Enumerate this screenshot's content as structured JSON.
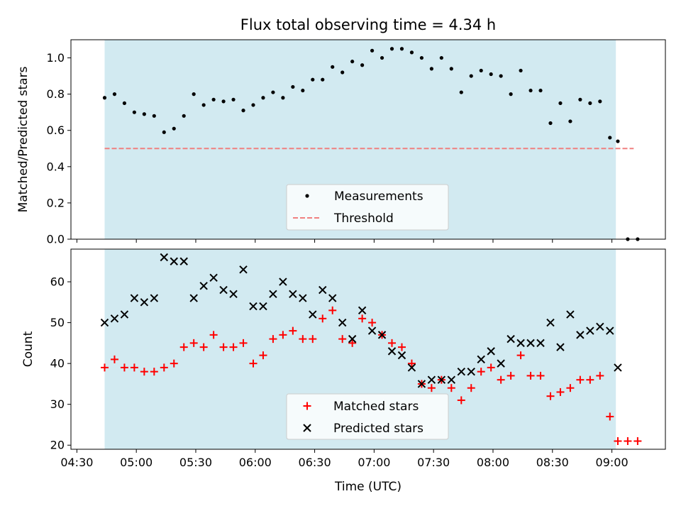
{
  "chart_data": [
    {
      "type": "scatter",
      "title": "Flux total observing time = 4.34 h",
      "ylabel": "Matched/Predicted stars",
      "xlabel": "",
      "xlim": [
        "04:27",
        "09:27"
      ],
      "ylim": [
        0,
        1.1
      ],
      "yticks": [
        "0.0",
        "0.2",
        "0.4",
        "0.6",
        "0.8",
        "1.0"
      ],
      "shaded_span": [
        "04:44",
        "09:02"
      ],
      "legend": [
        "Measurements",
        "Threshold"
      ],
      "legend_position": "bottom-center",
      "threshold": {
        "y": 0.5,
        "x": [
          "04:44",
          "09:11"
        ]
      },
      "series": [
        {
          "name": "Measurements",
          "x": [
            "04:44",
            "04:49",
            "04:54",
            "04:59",
            "05:04",
            "05:09",
            "05:14",
            "05:19",
            "05:24",
            "05:29",
            "05:34",
            "05:39",
            "05:44",
            "05:49",
            "05:54",
            "05:59",
            "06:04",
            "06:09",
            "06:14",
            "06:19",
            "06:24",
            "06:29",
            "06:34",
            "06:39",
            "06:44",
            "06:49",
            "06:54",
            "06:59",
            "07:04",
            "07:09",
            "07:14",
            "07:19",
            "07:24",
            "07:29",
            "07:34",
            "07:39",
            "07:44",
            "07:49",
            "07:54",
            "07:59",
            "08:04",
            "08:09",
            "08:14",
            "08:19",
            "08:24",
            "08:29",
            "08:34",
            "08:39",
            "08:44",
            "08:49",
            "08:54",
            "08:59",
            "09:03",
            "09:08",
            "09:13"
          ],
          "values": [
            0.78,
            0.8,
            0.75,
            0.7,
            0.69,
            0.68,
            0.59,
            0.61,
            0.68,
            0.8,
            0.74,
            0.77,
            0.76,
            0.77,
            0.71,
            0.74,
            0.78,
            0.81,
            0.78,
            0.84,
            0.82,
            0.88,
            0.88,
            0.95,
            0.92,
            0.98,
            0.96,
            1.04,
            1.0,
            1.05,
            1.05,
            1.03,
            1.0,
            0.94,
            1.0,
            0.94,
            0.81,
            0.9,
            0.93,
            0.91,
            0.9,
            0.8,
            0.93,
            0.82,
            0.82,
            0.64,
            0.75,
            0.65,
            0.77,
            0.75,
            0.76,
            0.56,
            0.54,
            0.0,
            0.0
          ]
        }
      ]
    },
    {
      "type": "scatter",
      "title": "",
      "ylabel": "Count",
      "xlabel": "Time (UTC)",
      "xlim": [
        "04:27",
        "09:27"
      ],
      "ylim": [
        19,
        68
      ],
      "yticks": [
        "20",
        "30",
        "40",
        "50",
        "60"
      ],
      "xticks": [
        "04:30",
        "05:00",
        "05:30",
        "06:00",
        "06:30",
        "07:00",
        "07:30",
        "08:00",
        "08:30",
        "09:00"
      ],
      "shaded_span": [
        "04:44",
        "09:02"
      ],
      "legend": [
        "Matched stars",
        "Predicted stars"
      ],
      "legend_position": "bottom-center",
      "series": [
        {
          "name": "Matched stars",
          "color": "#ff0000",
          "x": [
            "04:44",
            "04:49",
            "04:54",
            "04:59",
            "05:04",
            "05:09",
            "05:14",
            "05:19",
            "05:24",
            "05:29",
            "05:34",
            "05:39",
            "05:44",
            "05:49",
            "05:54",
            "05:59",
            "06:04",
            "06:09",
            "06:14",
            "06:19",
            "06:24",
            "06:29",
            "06:34",
            "06:39",
            "06:44",
            "06:49",
            "06:54",
            "06:59",
            "07:04",
            "07:09",
            "07:14",
            "07:19",
            "07:24",
            "07:29",
            "07:34",
            "07:39",
            "07:44",
            "07:49",
            "07:54",
            "07:59",
            "08:04",
            "08:09",
            "08:14",
            "08:19",
            "08:24",
            "08:29",
            "08:34",
            "08:39",
            "08:44",
            "08:49",
            "08:54",
            "08:59",
            "09:03",
            "09:08",
            "09:13"
          ],
          "values": [
            39,
            41,
            39,
            39,
            38,
            38,
            39,
            40,
            44,
            45,
            44,
            47,
            44,
            44,
            45,
            40,
            42,
            46,
            47,
            48,
            46,
            46,
            51,
            53,
            46,
            45,
            51,
            50,
            47,
            45,
            44,
            40,
            35,
            34,
            36,
            34,
            31,
            34,
            38,
            39,
            36,
            37,
            42,
            37,
            37,
            32,
            33,
            34,
            36,
            36,
            37,
            27,
            21,
            21,
            21
          ]
        },
        {
          "name": "Predicted stars",
          "color": "#000000",
          "x": [
            "04:44",
            "04:49",
            "04:54",
            "04:59",
            "05:04",
            "05:09",
            "05:14",
            "05:19",
            "05:24",
            "05:29",
            "05:34",
            "05:39",
            "05:44",
            "05:49",
            "05:54",
            "05:59",
            "06:04",
            "06:09",
            "06:14",
            "06:19",
            "06:24",
            "06:29",
            "06:34",
            "06:39",
            "06:44",
            "06:49",
            "06:54",
            "06:59",
            "07:04",
            "07:09",
            "07:14",
            "07:19",
            "07:24",
            "07:29",
            "07:34",
            "07:39",
            "07:44",
            "07:49",
            "07:54",
            "07:59",
            "08:04",
            "08:09",
            "08:14",
            "08:19",
            "08:24",
            "08:29",
            "08:34",
            "08:39",
            "08:44",
            "08:49",
            "08:54",
            "08:59",
            "09:03"
          ],
          "values": [
            50,
            51,
            52,
            56,
            55,
            56,
            66,
            65,
            65,
            56,
            59,
            61,
            58,
            57,
            63,
            54,
            54,
            57,
            60,
            57,
            56,
            52,
            58,
            56,
            50,
            46,
            53,
            48,
            47,
            43,
            42,
            39,
            35,
            36,
            36,
            36,
            38,
            38,
            41,
            43,
            40,
            46,
            45,
            45,
            45,
            50,
            44,
            52,
            47,
            48,
            49,
            48,
            39
          ]
        }
      ]
    }
  ],
  "colors": {
    "shade": "#add8e6",
    "threshold": "#f08080",
    "matched": "#ff0000",
    "predicted": "#000000",
    "measurement": "#000000"
  }
}
